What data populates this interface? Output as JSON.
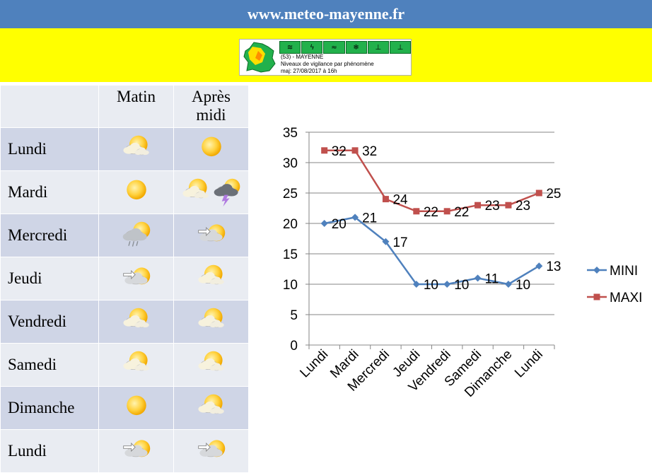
{
  "header": {
    "title": "www.meteo-mayenne.fr"
  },
  "vigilance": {
    "line1": "(53) - MAYENNE",
    "line2": "Niveaux de vigilance par phénomène",
    "line3": "maj: 27/08/2017 à 16h",
    "level_color": "#22b14c"
  },
  "forecast": {
    "columns": {
      "morning": "Matin",
      "afternoon_line1": "Après",
      "afternoon_line2": "midi"
    },
    "rows": [
      {
        "day": "Lundi",
        "morning": [
          "partly-sunny"
        ],
        "afternoon": [
          "sunny"
        ]
      },
      {
        "day": "Mardi",
        "morning": [
          "sunny"
        ],
        "afternoon": [
          "partly-sunny",
          "thunderstorm"
        ]
      },
      {
        "day": "Mercredi",
        "morning": [
          "rain-cloud-sun"
        ],
        "afternoon": [
          "cloud-sun-wind"
        ]
      },
      {
        "day": "Jeudi",
        "morning": [
          "cloud-sun-wind"
        ],
        "afternoon": [
          "partly-sunny"
        ]
      },
      {
        "day": "Vendredi",
        "morning": [
          "partly-sunny"
        ],
        "afternoon": [
          "partly-sunny"
        ]
      },
      {
        "day": "Samedi",
        "morning": [
          "partly-sunny"
        ],
        "afternoon": [
          "partly-sunny"
        ]
      },
      {
        "day": "Dimanche",
        "morning": [
          "sunny"
        ],
        "afternoon": [
          "partly-sunny"
        ]
      },
      {
        "day": "Lundi",
        "morning": [
          "cloud-sun-wind"
        ],
        "afternoon": [
          "cloud-sun-wind"
        ]
      }
    ]
  },
  "chart_data": {
    "type": "line",
    "categories": [
      "Lundi",
      "Mardi",
      "Mercredi",
      "Jeudi",
      "Vendredi",
      "Samedi",
      "Dimanche",
      "Lundi"
    ],
    "series": [
      {
        "name": "MINI",
        "values": [
          20,
          21,
          17,
          10,
          10,
          11,
          10,
          13
        ],
        "color": "#4f81bd",
        "marker": "diamond"
      },
      {
        "name": "MAXI",
        "values": [
          32,
          32,
          24,
          22,
          22,
          23,
          23,
          25
        ],
        "color": "#c0504d",
        "marker": "square"
      }
    ],
    "yticks": [
      0,
      5,
      10,
      15,
      20,
      25,
      30,
      35
    ],
    "ylim": [
      0,
      35
    ],
    "title": "",
    "xlabel": "",
    "ylabel": "",
    "grid": true,
    "legend": "right",
    "data_labels": true
  }
}
